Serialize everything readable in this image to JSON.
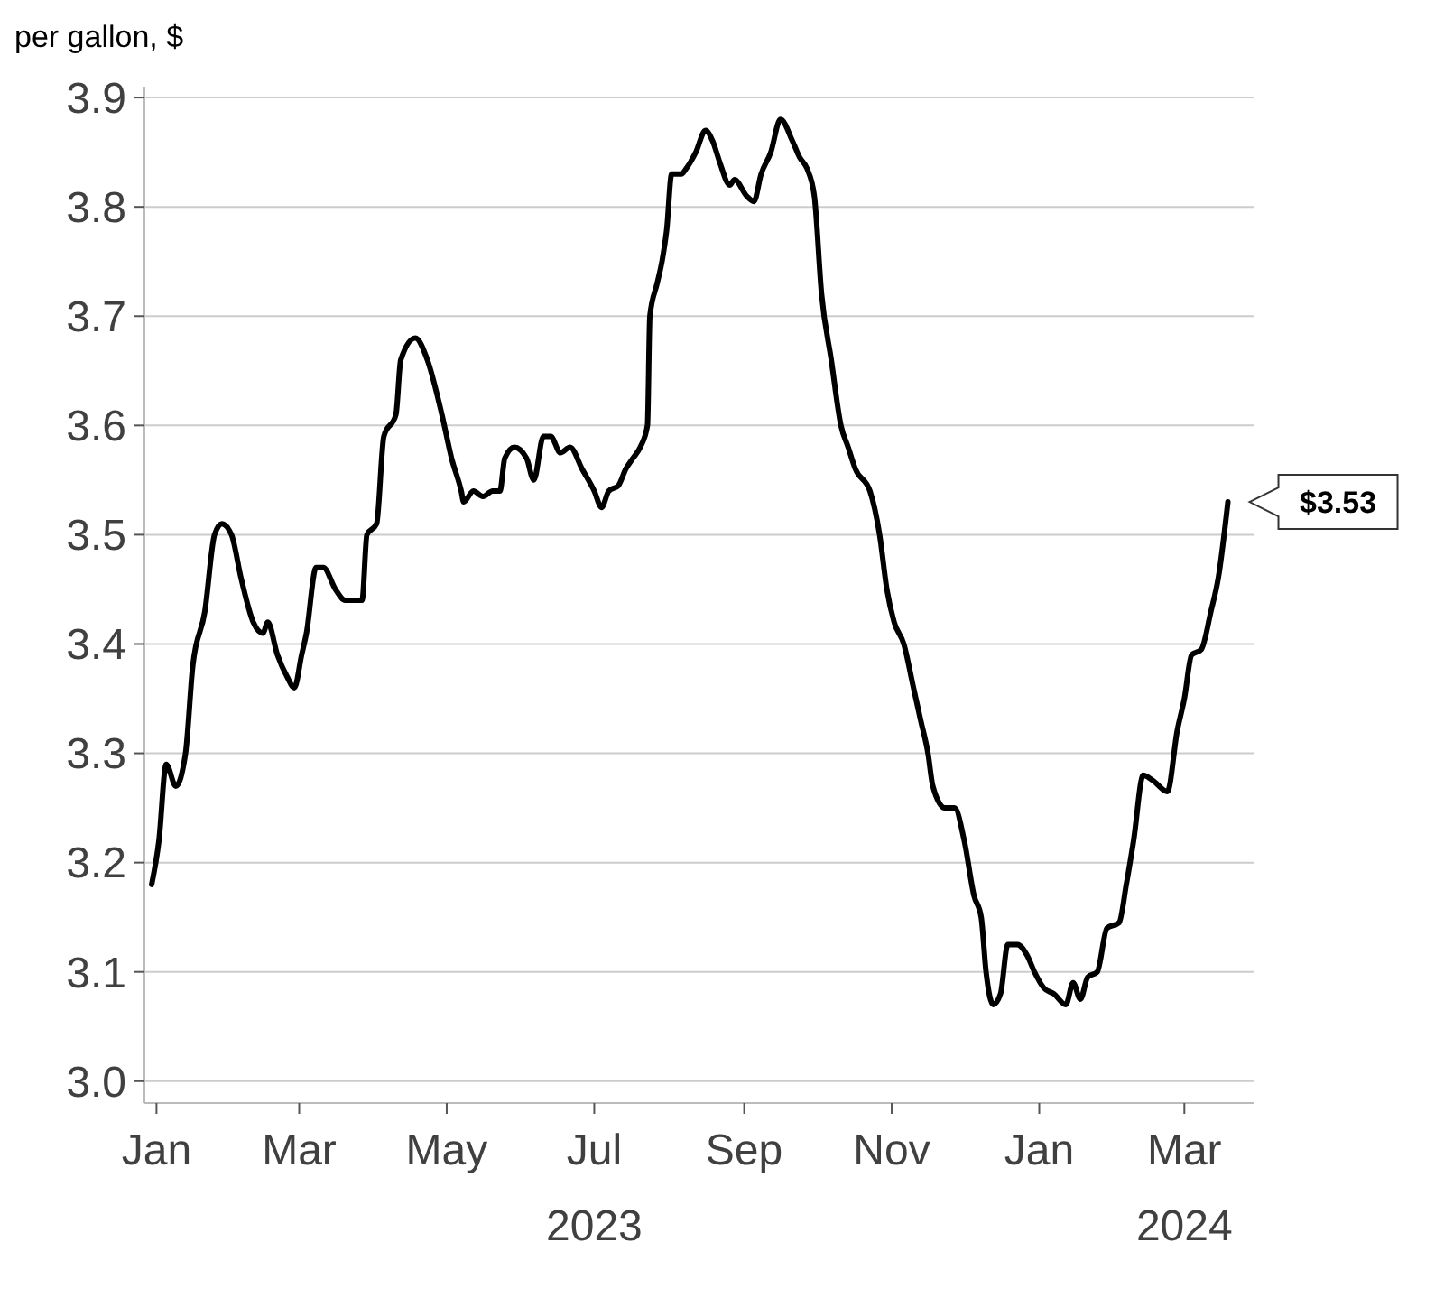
{
  "chart_data": {
    "type": "line",
    "ylabel": "per gallon, $",
    "x": [
      "2022-12-30",
      "2023-01-02",
      "2023-01-05",
      "2023-01-09",
      "2023-01-13",
      "2023-01-16",
      "2023-01-21",
      "2023-01-25",
      "2023-01-28",
      "2023-02-01",
      "2023-02-05",
      "2023-02-10",
      "2023-02-14",
      "2023-02-16",
      "2023-02-20",
      "2023-02-24",
      "2023-02-27",
      "2023-03-02",
      "2023-03-04",
      "2023-03-08",
      "2023-03-11",
      "2023-03-16",
      "2023-03-20",
      "2023-03-24",
      "2023-03-27",
      "2023-03-29",
      "2023-04-02",
      "2023-04-05",
      "2023-04-10",
      "2023-04-12",
      "2023-04-18",
      "2023-04-23",
      "2023-04-29",
      "2023-05-03",
      "2023-05-07",
      "2023-05-08",
      "2023-05-12",
      "2023-05-16",
      "2023-05-20",
      "2023-05-23",
      "2023-05-25",
      "2023-05-29",
      "2023-06-03",
      "2023-06-06",
      "2023-06-10",
      "2023-06-13",
      "2023-06-17",
      "2023-06-21",
      "2023-06-26",
      "2023-07-01",
      "2023-07-04",
      "2023-07-07",
      "2023-07-11",
      "2023-07-14",
      "2023-07-17",
      "2023-07-20",
      "2023-07-23",
      "2023-07-24",
      "2023-07-27",
      "2023-07-29",
      "2023-07-31",
      "2023-08-02",
      "2023-08-06",
      "2023-08-08",
      "2023-08-12",
      "2023-08-16",
      "2023-08-19",
      "2023-08-22",
      "2023-08-26",
      "2023-08-28",
      "2023-09-02",
      "2023-09-05",
      "2023-09-08",
      "2023-09-12",
      "2023-09-16",
      "2023-09-21",
      "2023-09-24",
      "2023-09-27",
      "2023-09-30",
      "2023-10-03",
      "2023-10-07",
      "2023-10-11",
      "2023-10-14",
      "2023-10-17",
      "2023-10-23",
      "2023-10-27",
      "2023-10-30",
      "2023-11-02",
      "2023-11-06",
      "2023-11-10",
      "2023-11-13",
      "2023-11-16",
      "2023-11-18",
      "2023-11-23",
      "2023-11-27",
      "2023-12-01",
      "2023-12-05",
      "2023-12-08",
      "2023-12-10",
      "2023-12-13",
      "2023-12-16",
      "2023-12-19",
      "2023-12-23",
      "2023-12-27",
      "2023-12-30",
      "2024-01-03",
      "2024-01-07",
      "2024-01-12",
      "2024-01-15",
      "2024-01-18",
      "2024-01-21",
      "2024-01-25",
      "2024-01-29",
      "2024-02-03",
      "2024-02-06",
      "2024-02-09",
      "2024-02-13",
      "2024-02-17",
      "2024-02-23",
      "2024-02-27",
      "2024-03-01",
      "2024-03-04",
      "2024-03-08",
      "2024-03-12",
      "2024-03-15",
      "2024-03-19"
    ],
    "series": [
      {
        "color": "#000000",
        "values": [
          3.18,
          3.22,
          3.29,
          3.27,
          3.3,
          3.38,
          3.43,
          3.5,
          3.51,
          3.5,
          3.46,
          3.42,
          3.41,
          3.42,
          3.39,
          3.37,
          3.36,
          3.39,
          3.41,
          3.47,
          3.47,
          3.45,
          3.44,
          3.44,
          3.44,
          3.5,
          3.51,
          3.59,
          3.61,
          3.66,
          3.68,
          3.66,
          3.61,
          3.57,
          3.54,
          3.53,
          3.54,
          3.535,
          3.54,
          3.54,
          3.57,
          3.58,
          3.57,
          3.55,
          3.59,
          3.59,
          3.575,
          3.58,
          3.56,
          3.54,
          3.525,
          3.54,
          3.545,
          3.56,
          3.57,
          3.58,
          3.6,
          3.7,
          3.73,
          3.75,
          3.78,
          3.83,
          3.83,
          3.835,
          3.85,
          3.87,
          3.86,
          3.84,
          3.82,
          3.825,
          3.81,
          3.805,
          3.83,
          3.85,
          3.88,
          3.86,
          3.845,
          3.835,
          3.81,
          3.72,
          3.66,
          3.6,
          3.58,
          3.56,
          3.54,
          3.5,
          3.45,
          3.42,
          3.4,
          3.36,
          3.33,
          3.3,
          3.27,
          3.25,
          3.25,
          3.22,
          3.17,
          3.15,
          3.1,
          3.07,
          3.08,
          3.125,
          3.125,
          3.115,
          3.1,
          3.085,
          3.08,
          3.07,
          3.09,
          3.075,
          3.095,
          3.1,
          3.14,
          3.145,
          3.18,
          3.22,
          3.28,
          3.275,
          3.265,
          3.32,
          3.35,
          3.39,
          3.395,
          3.43,
          3.46,
          3.53
        ]
      }
    ],
    "xlim": [
      "2022-12-27",
      "2024-03-30"
    ],
    "xticks": [
      {
        "value": "2023-01-01",
        "label": "Jan"
      },
      {
        "value": "2023-03-01",
        "label": "Mar"
      },
      {
        "value": "2023-05-01",
        "label": "May"
      },
      {
        "value": "2023-07-01",
        "label": "Jul\n2023"
      },
      {
        "value": "2023-09-01",
        "label": "Sep"
      },
      {
        "value": "2023-11-01",
        "label": "Nov"
      },
      {
        "value": "2024-01-01",
        "label": "Jan"
      },
      {
        "value": "2024-03-01",
        "label": "Mar\n2024"
      }
    ],
    "ylim": [
      2.98,
      3.91
    ],
    "yticks": [
      {
        "value": 3,
        "label": "3.0"
      },
      3.1,
      3.2,
      3.3,
      3.4,
      3.5,
      3.6,
      3.7,
      3.8,
      3.9
    ],
    "grid": "y",
    "annotations": [
      {
        "text": "$3.53",
        "x": "2024-03-19",
        "y": 3.53
      }
    ]
  }
}
